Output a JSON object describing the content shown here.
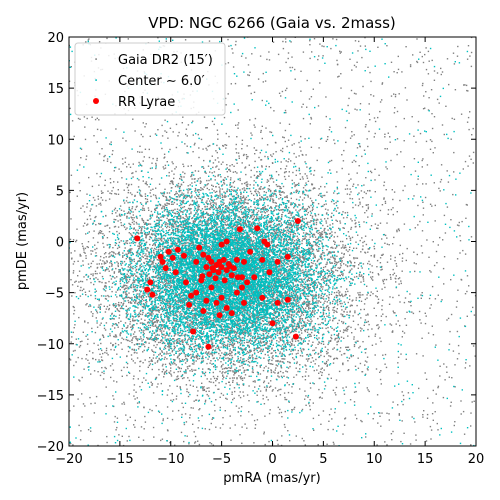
{
  "chart_data": {
    "type": "scatter",
    "title": "VPD: NGC 6266 (Gaia vs. 2mass)",
    "xlabel": "pmRA (mas/yr)",
    "ylabel": "pmDE (mas/yr)",
    "xlim": [
      -20,
      20
    ],
    "ylim": [
      -20,
      20
    ],
    "xticks": [
      -20,
      -15,
      -10,
      -5,
      0,
      5,
      10,
      15,
      20
    ],
    "yticks": [
      -20,
      -15,
      -10,
      -5,
      0,
      5,
      10,
      15,
      20
    ],
    "legend_position": "upper-left",
    "series": [
      {
        "name": "Gaia DR2 (15′)",
        "color": "#808080",
        "marker": "small-dot",
        "distribution": {
          "center": [
            -4.5,
            -3.5
          ],
          "spread": [
            6.5,
            5.0
          ],
          "count_core": 9000,
          "count_halo": 1600
        }
      },
      {
        "name": "Center ∼ 6.0′",
        "color": "#00c0c0",
        "marker": "small-dot",
        "distribution": {
          "center": [
            -4.5,
            -3.5
          ],
          "spread": [
            4.5,
            3.6
          ],
          "count_core": 9000,
          "count_halo": 500
        }
      },
      {
        "name": "RR Lyrae",
        "color": "#ff0000",
        "marker": "circle",
        "points": [
          [
            -13.3,
            0.3
          ],
          [
            -11.0,
            -1.5
          ],
          [
            -10.8,
            -2.0
          ],
          [
            -10.2,
            -1.0
          ],
          [
            -10.5,
            -2.6
          ],
          [
            -12.0,
            -4.0
          ],
          [
            -12.3,
            -4.7
          ],
          [
            -11.8,
            -5.2
          ],
          [
            -9.3,
            -0.8
          ],
          [
            -8.7,
            -1.4
          ],
          [
            -9.5,
            -3.0
          ],
          [
            -8.5,
            -4.0
          ],
          [
            -8.0,
            -5.3
          ],
          [
            -7.5,
            -2.0
          ],
          [
            -7.2,
            -0.6
          ],
          [
            -6.8,
            -1.3
          ],
          [
            -6.5,
            -2.5
          ],
          [
            -6.2,
            -3.2
          ],
          [
            -6.0,
            -2.0
          ],
          [
            -5.8,
            -2.8
          ],
          [
            -5.5,
            -2.3
          ],
          [
            -5.3,
            -3.0
          ],
          [
            -5.0,
            -2.5
          ],
          [
            -4.8,
            -1.8
          ],
          [
            -4.5,
            -2.8
          ],
          [
            -4.3,
            -2.2
          ],
          [
            -4.0,
            -3.3
          ],
          [
            -3.8,
            -2.6
          ],
          [
            -3.5,
            -1.8
          ],
          [
            -5.2,
            -2.0
          ],
          [
            -5.6,
            -3.6
          ],
          [
            -6.3,
            -1.6
          ],
          [
            -4.7,
            -3.8
          ],
          [
            -5.9,
            -2.6
          ],
          [
            -4.2,
            -2.4
          ],
          [
            -6.9,
            -3.4
          ],
          [
            -3.4,
            -3.5
          ],
          [
            -5.0,
            -0.3
          ],
          [
            -4.5,
            0.0
          ],
          [
            -3.2,
            1.2
          ],
          [
            -1.5,
            1.3
          ],
          [
            -0.5,
            -0.3
          ],
          [
            -0.8,
            0.0
          ],
          [
            -2.2,
            -1.0
          ],
          [
            -1.0,
            -1.8
          ],
          [
            -2.8,
            -2.0
          ],
          [
            -3.0,
            -3.5
          ],
          [
            -2.5,
            -4.0
          ],
          [
            -1.8,
            -3.5
          ],
          [
            -0.3,
            -3.0
          ],
          [
            0.5,
            -2.0
          ],
          [
            1.5,
            -1.5
          ],
          [
            2.5,
            2.0
          ],
          [
            -6.0,
            -4.5
          ],
          [
            -5.0,
            -5.5
          ],
          [
            -5.5,
            -6.0
          ],
          [
            -4.5,
            -6.5
          ],
          [
            -6.5,
            -5.8
          ],
          [
            -7.5,
            -5.0
          ],
          [
            -3.5,
            -5.0
          ],
          [
            -2.8,
            -6.0
          ],
          [
            -4.0,
            -7.0
          ],
          [
            -5.2,
            -7.2
          ],
          [
            -1.0,
            -5.5
          ],
          [
            0.5,
            -6.0
          ],
          [
            -8.2,
            -6.2
          ],
          [
            -6.8,
            -6.8
          ],
          [
            0.0,
            -8.0
          ],
          [
            1.5,
            -5.7
          ],
          [
            2.3,
            -9.3
          ],
          [
            -7.8,
            -8.8
          ],
          [
            -6.3,
            -10.3
          ],
          [
            -3.0,
            -4.5
          ],
          [
            -7.0,
            -3.8
          ],
          [
            -9.8,
            -1.6
          ]
        ]
      }
    ]
  }
}
